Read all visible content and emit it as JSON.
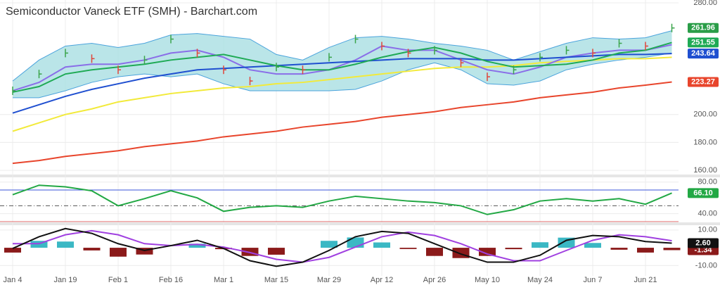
{
  "chart_data": [
    {
      "type": "line",
      "title": "Semiconductor Vaneck ETF (SMH) - Barchart.com",
      "categories": [
        "Jan 4",
        null,
        "Jan 19",
        null,
        "Feb 1",
        null,
        "Feb 16",
        null,
        "Mar 1",
        null,
        "Mar 15",
        null,
        "Mar 29",
        null,
        "Apr 12",
        null,
        "Apr 26",
        null,
        "May 10",
        null,
        "May 24",
        null,
        "Jun 7",
        null,
        "Jun 21",
        null
      ],
      "ylim": [
        156,
        282
      ],
      "yticks": [
        {
          "value": 280,
          "label": "280.00"
        },
        {
          "value": 200,
          "label": "200.00"
        },
        {
          "value": 180,
          "label": "180.00"
        },
        {
          "value": 160,
          "label": "160.00"
        }
      ],
      "grid": true,
      "band": {
        "color": "#4aa3dc",
        "fill": "#aee0e4",
        "upper": [
          224,
          239,
          249,
          251,
          248,
          251,
          257,
          258,
          256,
          254,
          243,
          239,
          248,
          255,
          256,
          254,
          251,
          249,
          246,
          239,
          245,
          251,
          255,
          254,
          255,
          260
        ],
        "lower": [
          212,
          212,
          217,
          223,
          227,
          229,
          227,
          229,
          222,
          217,
          217,
          217,
          217,
          218,
          224,
          232,
          237,
          232,
          222,
          221,
          224,
          232,
          236,
          239,
          241,
          244
        ]
      },
      "series": [
        {
          "color": "#e8452c",
          "values": [
            165,
            167,
            170,
            172,
            174,
            177,
            179,
            181,
            184,
            186,
            188,
            191,
            193,
            195,
            198,
            200,
            202,
            205,
            207,
            209,
            212,
            214,
            216,
            219,
            221,
            223.27
          ],
          "badge": true
        },
        {
          "color": "#f2ea3a",
          "values": [
            188,
            194,
            200,
            204,
            209,
            212,
            215,
            217,
            219,
            220,
            222,
            223,
            225,
            227,
            229,
            231,
            233,
            234,
            234,
            235,
            237,
            238,
            239,
            240,
            240,
            241
          ]
        },
        {
          "color": "#8a6ee8",
          "values": [
            217,
            223,
            234,
            236,
            236,
            239,
            244,
            246,
            241,
            232,
            229,
            229,
            232,
            239,
            249,
            246,
            246,
            239,
            232,
            229,
            234,
            241,
            244,
            246,
            246,
            250
          ]
        },
        {
          "color": "#1f4fd0",
          "values": [
            201,
            207,
            213,
            218,
            222,
            226,
            229,
            232,
            233,
            234,
            235,
            236,
            237,
            238,
            239,
            240,
            240,
            240,
            239,
            239,
            240,
            241,
            242,
            243,
            243,
            243.64
          ],
          "badge": true
        },
        {
          "color": "#1faa55",
          "values": [
            216,
            220,
            229,
            232,
            234,
            236,
            239,
            241,
            243,
            239,
            235,
            232,
            232,
            236,
            241,
            245,
            248,
            244,
            238,
            234,
            235,
            236,
            239,
            244,
            246,
            251.55
          ],
          "badge": true
        },
        {
          "marker": "tick",
          "up_color": "#3aa44a",
          "down_color": "#e0453a",
          "color": "#2a9d48",
          "values": [
            217,
            229,
            244,
            240,
            232,
            239,
            254,
            244,
            232,
            224,
            234,
            232,
            241,
            254,
            249,
            244,
            246,
            237,
            227,
            232,
            241,
            246,
            244,
            251,
            249,
            261.96
          ],
          "badge": true
        }
      ]
    },
    {
      "type": "line",
      "ylim": [
        29,
        86
      ],
      "yticks": [
        {
          "value": 80,
          "label": "80.00"
        },
        {
          "value": 40,
          "label": "40.00"
        }
      ],
      "grid": true,
      "levels": [
        {
          "value": 70,
          "color": "#3a56d8"
        },
        {
          "value": 50,
          "color": "#555555",
          "dash": true
        },
        {
          "value": 30,
          "color": "#e07070"
        }
      ],
      "series": [
        {
          "color": "#22a844",
          "values": [
            64,
            76,
            74,
            69,
            50,
            59,
            69,
            60,
            43,
            48,
            50,
            48,
            56,
            62,
            59,
            56,
            54,
            50,
            39,
            45,
            56,
            59,
            56,
            59,
            52,
            66.1
          ],
          "value_labels": [
            null,
            null,
            null,
            null,
            null,
            null,
            null,
            null,
            null,
            null,
            null,
            null,
            null,
            null,
            null,
            null,
            null,
            null,
            null,
            null,
            null,
            null,
            null,
            null,
            null,
            "66.10"
          ],
          "badge": true
        }
      ]
    },
    {
      "type": "macd",
      "ylim": [
        -15.8,
        12.7
      ],
      "yticks": [
        {
          "value": 10,
          "label": "10.00"
        },
        {
          "value": -10,
          "label": "-10.00"
        }
      ],
      "grid": true,
      "histogram": {
        "up_color": "#3bb8c4",
        "down_color": "#8b1a1a",
        "values": [
          -2.7,
          3.9,
          3.5,
          -1.5,
          -5.0,
          -3.8,
          0,
          2.3,
          -0.8,
          -4.6,
          -3.9,
          0,
          3.9,
          5.8,
          3.0,
          -0.7,
          -4.6,
          -5.8,
          -4.6,
          -0.8,
          3.1,
          5.7,
          2.7,
          -1.1,
          -2.7,
          -1.34
        ],
        "badge": true
      },
      "series": [
        {
          "color": "#a040e0",
          "values": [
            2.3,
            2.3,
            7.3,
            9.6,
            7.3,
            2.3,
            1.2,
            1.9,
            0.4,
            -2.7,
            -6.5,
            -8.1,
            -5.4,
            0.4,
            6.2,
            8.8,
            6.9,
            2.3,
            -3.5,
            -7.3,
            -7.3,
            -1.5,
            4.2,
            7.3,
            6.2,
            3.94
          ]
        },
        {
          "color": "#111111",
          "values": [
            -0.4,
            6.2,
            10.8,
            8.1,
            2.3,
            -1.5,
            1.2,
            4.2,
            -0.4,
            -7.3,
            -10.4,
            -8.1,
            -1.5,
            6.2,
            9.2,
            8.1,
            2.3,
            -3.5,
            -8.1,
            -8.1,
            -4.2,
            4.2,
            6.9,
            6.2,
            3.5,
            2.6
          ],
          "value_labels": [
            null,
            null,
            null,
            null,
            null,
            null,
            null,
            null,
            null,
            null,
            null,
            null,
            null,
            null,
            null,
            null,
            null,
            null,
            null,
            null,
            null,
            null,
            null,
            null,
            null,
            "2.60"
          ],
          "badge": true
        }
      ]
    }
  ]
}
